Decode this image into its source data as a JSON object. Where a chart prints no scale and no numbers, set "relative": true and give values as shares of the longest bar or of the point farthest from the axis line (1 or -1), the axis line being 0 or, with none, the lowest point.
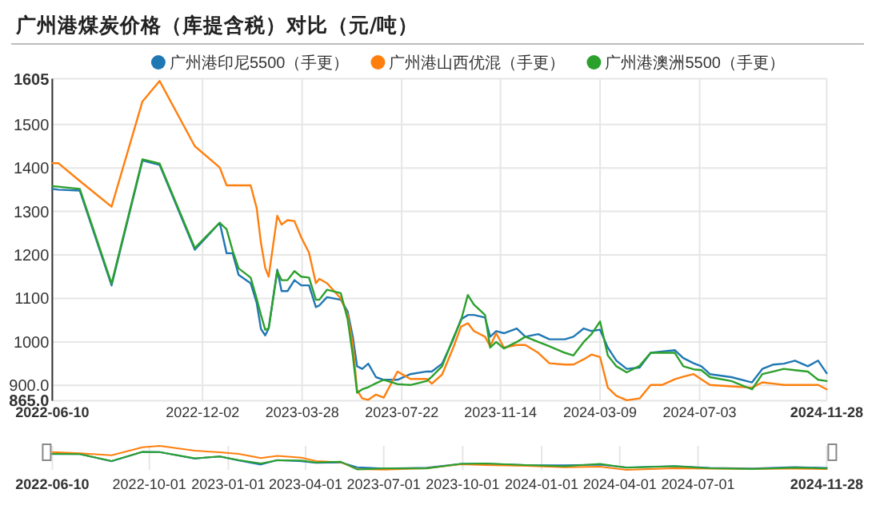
{
  "chart_data": [
    {
      "type": "line",
      "title": "广州港煤炭价格（库提含税）对比（元/吨）",
      "legend": "top",
      "grid": true,
      "marker": "none",
      "line_style": "solid",
      "xlim": [
        "2022-06-10",
        "2024-11-28"
      ],
      "ylim": [
        865,
        1605
      ],
      "xticks": [
        "2022-06-10",
        "2022-12-02",
        "2023-03-28",
        "2023-07-22",
        "2023-11-14",
        "2024-03-09",
        "2024-07-03",
        "2024-11-28"
      ],
      "yticks": [
        {
          "value": 865,
          "label": "865.0"
        },
        {
          "value": 900,
          "label": "900.0"
        },
        1000,
        1100,
        1200,
        1300,
        1400,
        1500,
        1605
      ],
      "x": [
        "2022-06-10",
        "2022-06-17",
        "2022-07-12",
        "2022-08-18",
        "2022-09-23",
        "2022-10-13",
        "2022-11-23",
        "2022-12-22",
        "2022-12-30",
        "2023-01-06",
        "2023-01-13",
        "2023-01-27",
        "2023-02-03",
        "2023-02-08",
        "2023-02-13",
        "2023-02-17",
        "2023-02-27",
        "2023-03-04",
        "2023-03-11",
        "2023-03-19",
        "2023-03-27",
        "2023-04-05",
        "2023-04-13",
        "2023-04-17",
        "2023-04-26",
        "2023-05-12",
        "2023-05-20",
        "2023-05-26",
        "2023-05-31",
        "2023-06-06",
        "2023-06-13",
        "2023-06-22",
        "2023-07-01",
        "2023-07-17",
        "2023-08-01",
        "2023-08-20",
        "2023-08-26",
        "2023-09-07",
        "2023-09-20",
        "2023-09-29",
        "2023-10-07",
        "2023-10-14",
        "2023-10-27",
        "2023-11-02",
        "2023-11-09",
        "2023-11-18",
        "2023-12-03",
        "2023-12-13",
        "2023-12-28",
        "2024-01-10",
        "2024-01-28",
        "2024-02-07",
        "2024-02-19",
        "2024-02-28",
        "2024-03-09",
        "2024-03-18",
        "2024-03-28",
        "2024-04-09",
        "2024-04-24",
        "2024-05-07",
        "2024-05-20",
        "2024-06-04",
        "2024-06-14",
        "2024-06-26",
        "2024-07-05",
        "2024-07-15",
        "2024-08-09",
        "2024-09-02",
        "2024-09-14",
        "2024-09-27",
        "2024-10-09",
        "2024-10-22",
        "2024-11-06",
        "2024-11-18",
        "2024-11-28"
      ],
      "series": [
        {
          "name": "广州港印尼5500（手更）",
          "color": "#1f77b4",
          "values": [
            1352,
            1350,
            1348,
            1130,
            1417,
            1407,
            1212,
            1274,
            1204,
            1204,
            1154,
            1135,
            1090,
            1030,
            1015,
            1031,
            1166,
            1117,
            1117,
            1142,
            1130,
            1130,
            1080,
            1084,
            1103,
            1097,
            1070,
            1012,
            944,
            938,
            950,
            919,
            913,
            913,
            926,
            932,
            932,
            950,
            1006,
            1052,
            1062,
            1062,
            1056,
            1012,
            1025,
            1020,
            1031,
            1012,
            1018,
            1006,
            1006,
            1012,
            1031,
            1025,
            1028,
            987,
            957,
            938,
            941,
            975,
            978,
            981,
            963,
            951,
            944,
            926,
            919,
            907,
            938,
            948,
            950,
            957,
            944,
            957,
            928
          ]
        },
        {
          "name": "广州港山西优混（手更）",
          "color": "#ff7f0e",
          "values": [
            1411,
            1411,
            1370,
            1311,
            1553,
            1600,
            1450,
            1401,
            1360,
            1360,
            1360,
            1360,
            1308,
            1228,
            1170,
            1150,
            1290,
            1270,
            1280,
            1278,
            1240,
            1205,
            1135,
            1145,
            1135,
            1100,
            1062,
            995,
            889,
            870,
            867,
            879,
            872,
            932,
            915,
            915,
            904,
            925,
            987,
            1035,
            1043,
            1025,
            1012,
            990,
            1020,
            987,
            993,
            993,
            975,
            951,
            948,
            948,
            960,
            971,
            965,
            895,
            876,
            866,
            870,
            901,
            901,
            914,
            920,
            926,
            914,
            901,
            898,
            895,
            907,
            904,
            901,
            901,
            901,
            901,
            891
          ]
        },
        {
          "name": "广州港澳洲5500（手更）",
          "color": "#2ca02c",
          "values": [
            1358,
            1357,
            1352,
            1134,
            1420,
            1410,
            1216,
            1274,
            1259,
            1210,
            1169,
            1148,
            1100,
            1062,
            1028,
            1031,
            1163,
            1142,
            1142,
            1163,
            1150,
            1148,
            1097,
            1097,
            1120,
            1112,
            1052,
            969,
            883,
            891,
            896,
            905,
            913,
            903,
            901,
            910,
            920,
            944,
            1009,
            1049,
            1108,
            1086,
            1062,
            987,
            1000,
            985,
            1000,
            1012,
            1000,
            990,
            975,
            969,
            1000,
            1018,
            1047,
            969,
            944,
            930,
            945,
            975,
            975,
            975,
            944,
            937,
            935,
            919,
            910,
            891,
            926,
            932,
            938,
            935,
            932,
            913,
            910
          ]
        }
      ]
    },
    {
      "type": "line",
      "grid": "x",
      "tick_labels": "x",
      "marker": "none",
      "line_style": "solid",
      "relative": true,
      "xlim": [
        "2022-06-10",
        "2024-11-28"
      ],
      "xticks": [
        "2022-06-10",
        "2022-10-01",
        "2023-01-01",
        "2023-04-01",
        "2023-07-01",
        "2023-10-01",
        "2024-01-01",
        "2024-04-01",
        "2024-07-01",
        "2024-11-28"
      ],
      "x": [
        "2022-06-10",
        "2022-07-12",
        "2022-08-18",
        "2022-09-23",
        "2022-10-13",
        "2022-11-23",
        "2022-12-22",
        "2023-01-13",
        "2023-02-08",
        "2023-02-27",
        "2023-03-27",
        "2023-04-13",
        "2023-05-12",
        "2023-05-31",
        "2023-07-01",
        "2023-08-20",
        "2023-09-29",
        "2023-10-27",
        "2023-12-13",
        "2024-01-28",
        "2024-03-09",
        "2024-04-09",
        "2024-06-04",
        "2024-07-15",
        "2024-09-02",
        "2024-10-22",
        "2024-11-28"
      ],
      "series": [
        {
          "color": "#1f77b4",
          "values": [
            0.66,
            0.66,
            0.36,
            0.75,
            0.74,
            0.47,
            0.56,
            0.39,
            0.22,
            0.41,
            0.36,
            0.29,
            0.31,
            0.11,
            0.06,
            0.09,
            0.25,
            0.26,
            0.2,
            0.19,
            0.22,
            0.1,
            0.16,
            0.08,
            0.06,
            0.12,
            0.08
          ]
        },
        {
          "color": "#ff7f0e",
          "values": [
            0.74,
            0.69,
            0.61,
            0.94,
            1,
            0.8,
            0.73,
            0.67,
            0.49,
            0.58,
            0.51,
            0.37,
            0.32,
            0.03,
            0.01,
            0.07,
            0.23,
            0.2,
            0.17,
            0.11,
            0.13,
            0,
            0.07,
            0.05,
            0.04,
            0.05,
            0.03
          ]
        },
        {
          "color": "#2ca02c",
          "values": [
            0.67,
            0.66,
            0.37,
            0.75,
            0.74,
            0.48,
            0.56,
            0.41,
            0.27,
            0.4,
            0.39,
            0.31,
            0.34,
            0.02,
            0.06,
            0.06,
            0.25,
            0.27,
            0.2,
            0.15,
            0.25,
            0.09,
            0.15,
            0.07,
            0.03,
            0.09,
            0.06
          ]
        }
      ]
    }
  ]
}
